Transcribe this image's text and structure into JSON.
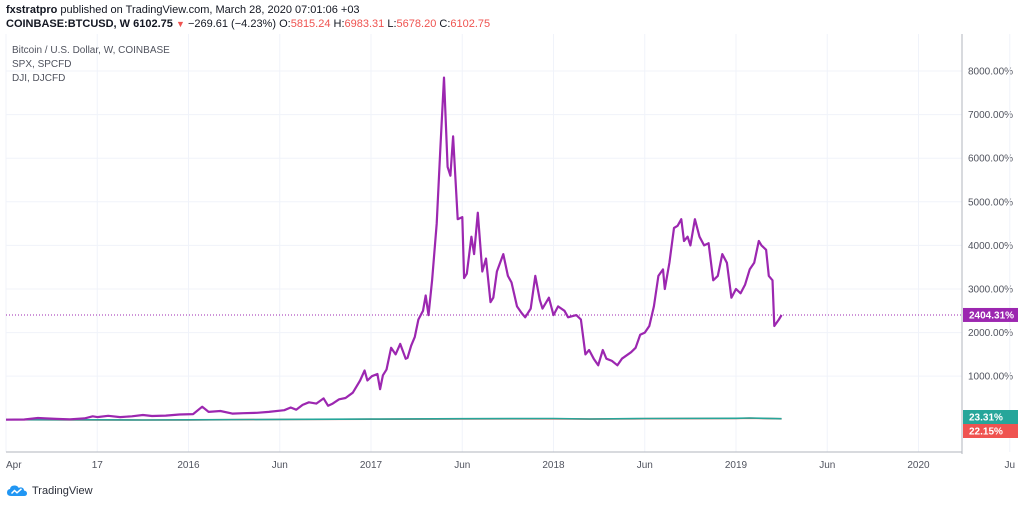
{
  "header": {
    "publisher": "fxstratpro",
    "published_text": "published on TradingView.com, March 28, 2020 07:01:06 +03",
    "symbol": "COINBASE:BTCUSD, W",
    "last": "6102.75",
    "change_arrow": "▼",
    "change": "−269.61 (−4.23%)",
    "o_label": "O:",
    "o": "5815.24",
    "h_label": "H:",
    "h": "6983.31",
    "l_label": "L:",
    "l": "5678.20",
    "c_label": "C:",
    "c": "6102.75"
  },
  "legend": {
    "items": [
      "Bitcoin / U.S. Dollar, W, COINBASE",
      "SPX, SPCFD",
      "DJI, DJCFD"
    ]
  },
  "branding": {
    "label": "TradingView"
  },
  "colors": {
    "btc": "#9c27b0",
    "spx": "#ef5350",
    "dji": "#26a69a",
    "grid": "#f0f3fa",
    "axis": "#50535e"
  },
  "chart_data": {
    "type": "line",
    "x_ticks": [
      "Apr",
      "17",
      "2016",
      "Jun",
      "2017",
      "Jun",
      "2018",
      "Jun",
      "2019",
      "Jun",
      "2020",
      "Ju"
    ],
    "y_ticks": [
      "8000.00%",
      "7000.00%",
      "6000.00%",
      "5000.00%",
      "4000.00%",
      "3000.00%",
      "2000.00%",
      "1000.00%"
    ],
    "ylim": [
      -740,
      8850
    ],
    "last_labels": [
      {
        "series": "BTC",
        "text": "2404.31%",
        "color": "#9c27b0"
      },
      {
        "series": "DJI",
        "text": "23.31%",
        "color": "#26a69a"
      },
      {
        "series": "SPX",
        "text": "22.15%",
        "color": "#ef5350"
      }
    ],
    "series": [
      {
        "name": "Bitcoin / U.S. Dollar, W, COINBASE",
        "values": [
          [
            0.0,
            0
          ],
          [
            0.2,
            5
          ],
          [
            0.35,
            40
          ],
          [
            0.43,
            30
          ],
          [
            0.55,
            20
          ],
          [
            0.7,
            10
          ],
          [
            0.86,
            30
          ],
          [
            0.95,
            80
          ],
          [
            1.0,
            60
          ],
          [
            1.12,
            90
          ],
          [
            1.25,
            60
          ],
          [
            1.38,
            80
          ],
          [
            1.5,
            110
          ],
          [
            1.6,
            85
          ],
          [
            1.75,
            95
          ],
          [
            1.9,
            120
          ],
          [
            2.05,
            130
          ],
          [
            2.15,
            300
          ],
          [
            2.22,
            180
          ],
          [
            2.35,
            200
          ],
          [
            2.48,
            140
          ],
          [
            2.6,
            150
          ],
          [
            2.75,
            160
          ],
          [
            2.88,
            180
          ],
          [
            3.05,
            220
          ],
          [
            3.12,
            280
          ],
          [
            3.18,
            230
          ],
          [
            3.25,
            340
          ],
          [
            3.32,
            400
          ],
          [
            3.4,
            370
          ],
          [
            3.48,
            490
          ],
          [
            3.53,
            320
          ],
          [
            3.58,
            370
          ],
          [
            3.65,
            470
          ],
          [
            3.72,
            500
          ],
          [
            3.8,
            620
          ],
          [
            3.88,
            900
          ],
          [
            3.93,
            1130
          ],
          [
            3.96,
            900
          ],
          [
            4.01,
            1000
          ],
          [
            4.07,
            1050
          ],
          [
            4.1,
            700
          ],
          [
            4.13,
            1020
          ],
          [
            4.17,
            1150
          ],
          [
            4.22,
            1650
          ],
          [
            4.27,
            1500
          ],
          [
            4.32,
            1740
          ],
          [
            4.38,
            1400
          ],
          [
            4.4,
            1420
          ],
          [
            4.44,
            1700
          ],
          [
            4.48,
            1900
          ],
          [
            4.52,
            2300
          ],
          [
            4.57,
            2500
          ],
          [
            4.6,
            2850
          ],
          [
            4.63,
            2400
          ],
          [
            4.67,
            3200
          ],
          [
            4.72,
            4500
          ],
          [
            4.76,
            6200
          ],
          [
            4.8,
            7850
          ],
          [
            4.84,
            5800
          ],
          [
            4.87,
            5600
          ],
          [
            4.9,
            6500
          ],
          [
            4.95,
            4600
          ],
          [
            5.0,
            4650
          ],
          [
            5.02,
            3250
          ],
          [
            5.05,
            3350
          ],
          [
            5.1,
            4200
          ],
          [
            5.13,
            3800
          ],
          [
            5.17,
            4750
          ],
          [
            5.22,
            3400
          ],
          [
            5.26,
            3700
          ],
          [
            5.31,
            2700
          ],
          [
            5.34,
            2800
          ],
          [
            5.38,
            3400
          ],
          [
            5.45,
            3800
          ],
          [
            5.5,
            3300
          ],
          [
            5.54,
            3150
          ],
          [
            5.6,
            2600
          ],
          [
            5.65,
            2450
          ],
          [
            5.69,
            2350
          ],
          [
            5.75,
            2550
          ],
          [
            5.8,
            3300
          ],
          [
            5.85,
            2750
          ],
          [
            5.88,
            2550
          ],
          [
            5.95,
            2800
          ],
          [
            6.0,
            2400
          ],
          [
            6.05,
            2600
          ],
          [
            6.12,
            2500
          ],
          [
            6.16,
            2350
          ],
          [
            6.25,
            2400
          ],
          [
            6.3,
            2300
          ],
          [
            6.35,
            1500
          ],
          [
            6.39,
            1600
          ],
          [
            6.44,
            1400
          ],
          [
            6.49,
            1250
          ],
          [
            6.54,
            1600
          ],
          [
            6.58,
            1400
          ],
          [
            6.64,
            1350
          ],
          [
            6.7,
            1250
          ],
          [
            6.75,
            1400
          ],
          [
            6.85,
            1550
          ],
          [
            6.9,
            1650
          ],
          [
            6.95,
            1950
          ],
          [
            7.0,
            2000
          ],
          [
            7.05,
            2150
          ],
          [
            7.1,
            2600
          ],
          [
            7.15,
            3300
          ],
          [
            7.2,
            3450
          ],
          [
            7.22,
            3000
          ],
          [
            7.27,
            3600
          ],
          [
            7.32,
            4400
          ],
          [
            7.36,
            4450
          ],
          [
            7.4,
            4600
          ],
          [
            7.43,
            4100
          ],
          [
            7.47,
            4200
          ],
          [
            7.5,
            4000
          ],
          [
            7.55,
            4600
          ],
          [
            7.6,
            4200
          ],
          [
            7.65,
            4000
          ],
          [
            7.7,
            4050
          ],
          [
            7.75,
            3200
          ],
          [
            7.8,
            3300
          ],
          [
            7.85,
            3800
          ],
          [
            7.9,
            3600
          ],
          [
            7.95,
            2800
          ],
          [
            8.0,
            3000
          ],
          [
            8.05,
            2900
          ],
          [
            8.1,
            3100
          ],
          [
            8.15,
            3450
          ],
          [
            8.2,
            3600
          ],
          [
            8.25,
            4100
          ],
          [
            8.28,
            4000
          ],
          [
            8.33,
            3900
          ],
          [
            8.36,
            3300
          ],
          [
            8.4,
            3200
          ],
          [
            8.42,
            2150
          ],
          [
            8.47,
            2300
          ],
          [
            8.5,
            2404
          ]
        ]
      },
      {
        "name": "SPX, SPCFD",
        "values": [
          [
            0.0,
            0
          ],
          [
            1.0,
            -3
          ],
          [
            1.5,
            -6
          ],
          [
            2.0,
            -3
          ],
          [
            3.0,
            5
          ],
          [
            4.0,
            12
          ],
          [
            5.0,
            20
          ],
          [
            6.0,
            22
          ],
          [
            6.4,
            15
          ],
          [
            7.0,
            25
          ],
          [
            8.0,
            30
          ],
          [
            8.15,
            35
          ],
          [
            8.5,
            22
          ]
        ]
      },
      {
        "name": "DJI, DJCFD",
        "values": [
          [
            0.0,
            0
          ],
          [
            1.0,
            -2
          ],
          [
            1.5,
            -5
          ],
          [
            2.0,
            -1
          ],
          [
            3.0,
            8
          ],
          [
            4.0,
            15
          ],
          [
            5.0,
            25
          ],
          [
            6.0,
            28
          ],
          [
            6.4,
            18
          ],
          [
            7.0,
            28
          ],
          [
            8.0,
            33
          ],
          [
            8.15,
            40
          ],
          [
            8.5,
            23
          ]
        ]
      }
    ]
  }
}
